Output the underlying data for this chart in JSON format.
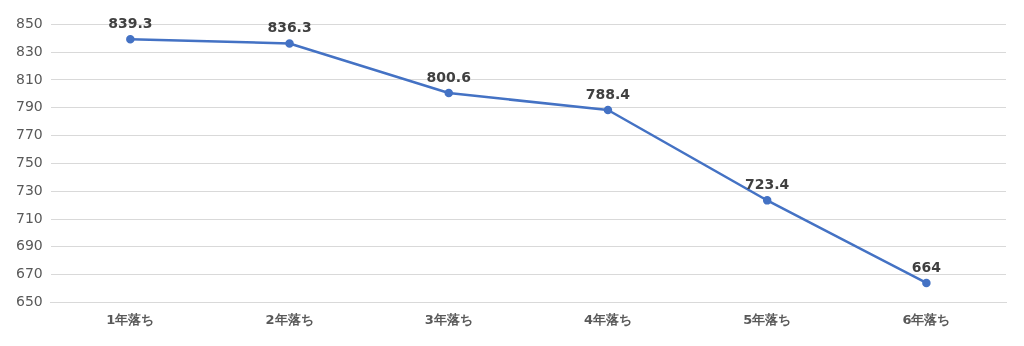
{
  "chart_data": {
    "type": "line",
    "categories": [
      "1年落ち",
      "2年落ち",
      "3年落ち",
      "4年落ち",
      "5年落ち",
      "6年落ち"
    ],
    "series": [
      {
        "color": "#4472c4",
        "values": [
          839.3,
          836.3,
          800.6,
          788.4,
          723.4,
          664
        ]
      }
    ],
    "ylim": [
      650,
      850
    ],
    "yticks": [
      650,
      670,
      690,
      710,
      730,
      750,
      770,
      790,
      810,
      830,
      850
    ],
    "grid": "y",
    "legend": false,
    "marker": "circle",
    "line_style": "solid",
    "data_labels": true
  }
}
